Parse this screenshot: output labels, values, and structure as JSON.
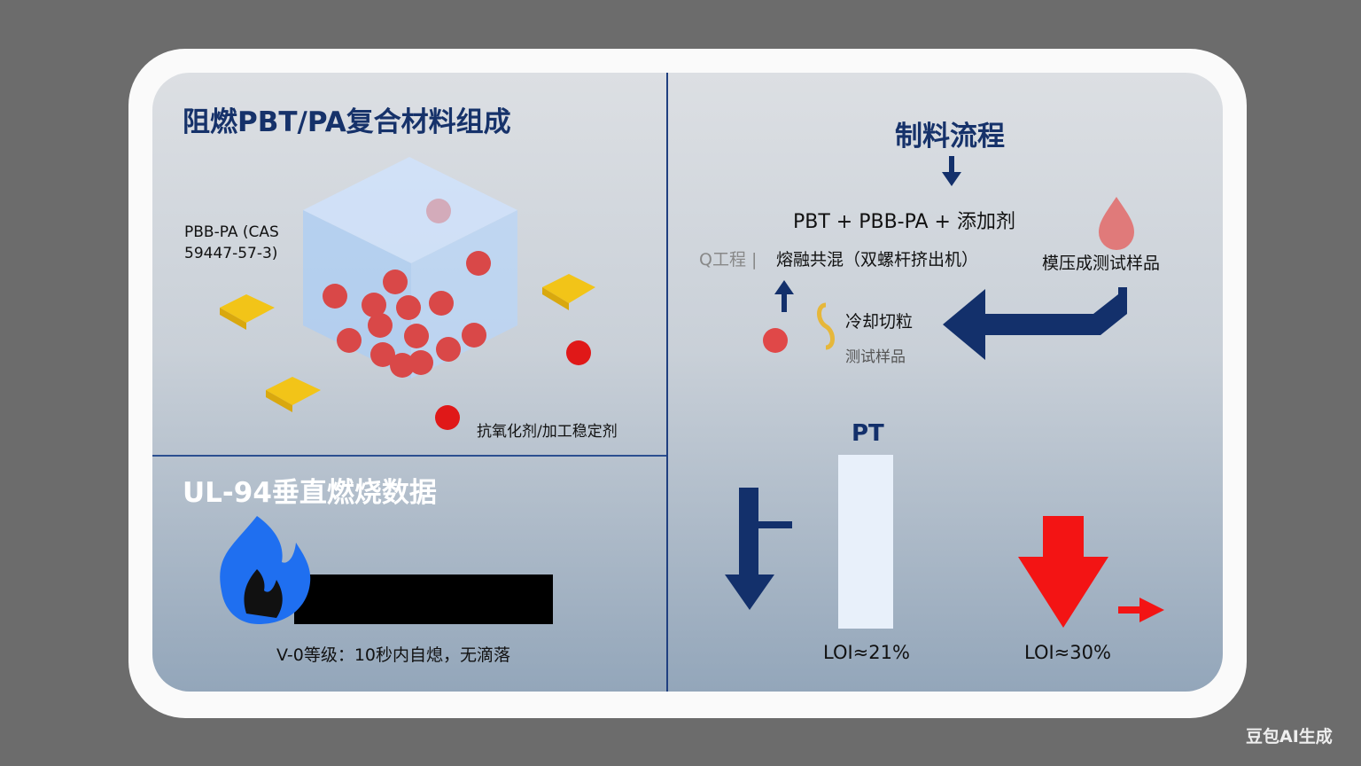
{
  "composition": {
    "title": "阻燃PBT/PA复合材料组成",
    "label_flame_retardant": "PBB-PA (CAS\n59447-57-3)",
    "label_antioxidant": "抗氧化剂/加工稳定剂"
  },
  "process": {
    "title": "制料流程",
    "ingredients": "PBT + PBB-PA + 添加剂",
    "step_prefix": "Q工程 |",
    "step_melt": "熔融共混（双螺杆挤出机）",
    "step_mold": "模压成测试样品",
    "step_cool": "冷却切粒",
    "step_cool_sub": "测试样品"
  },
  "ul94": {
    "title": "UL-94垂直燃烧数据",
    "rating": "V-0等级：10秒内自熄，无滴落"
  },
  "loi": {
    "bar_label": "PT",
    "loi_pure": "LOI≈21%",
    "loi_fr": "LOI≈30%"
  },
  "colors": {
    "navy": "#13306b",
    "red": "#e8201c",
    "flame": "#1f6ff0"
  },
  "watermark": "豆包AI生成"
}
